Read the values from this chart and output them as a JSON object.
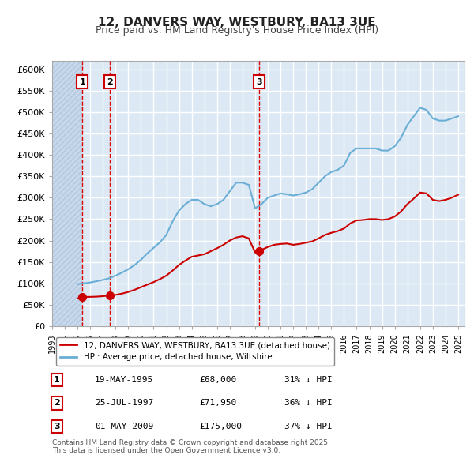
{
  "title": "12, DANVERS WAY, WESTBURY, BA13 3UE",
  "subtitle": "Price paid vs. HM Land Registry's House Price Index (HPI)",
  "ylabel": "",
  "ylim": [
    0,
    620000
  ],
  "yticks": [
    0,
    50000,
    100000,
    150000,
    200000,
    250000,
    300000,
    350000,
    400000,
    450000,
    500000,
    550000,
    600000
  ],
  "ytick_labels": [
    "£0",
    "£50K",
    "£100K",
    "£150K",
    "£200K",
    "£250K",
    "£300K",
    "£350K",
    "£400K",
    "£450K",
    "£500K",
    "£550K",
    "£600K"
  ],
  "xlim_start": 1993.0,
  "xlim_end": 2025.5,
  "background_color": "#dce9f5",
  "plot_bg_color": "#dce9f5",
  "hatch_color": "#c0d4e8",
  "grid_color": "#ffffff",
  "red_line_color": "#cc0000",
  "blue_line_color": "#6aaed6",
  "sale_points": [
    {
      "year": 1995.38,
      "price": 68000,
      "label": "1"
    },
    {
      "year": 1997.56,
      "price": 71950,
      "label": "2"
    },
    {
      "year": 2009.33,
      "price": 175000,
      "label": "3"
    }
  ],
  "vline_color": "#dd0000",
  "legend_entries": [
    "12, DANVERS WAY, WESTBURY, BA13 3UE (detached house)",
    "HPI: Average price, detached house, Wiltshire"
  ],
  "table_rows": [
    {
      "num": "1",
      "date": "19-MAY-1995",
      "price": "£68,000",
      "hpi": "31% ↓ HPI"
    },
    {
      "num": "2",
      "date": "25-JUL-1997",
      "price": "£71,950",
      "hpi": "36% ↓ HPI"
    },
    {
      "num": "3",
      "date": "01-MAY-2009",
      "price": "£175,000",
      "hpi": "37% ↓ HPI"
    }
  ],
  "footnote": "Contains HM Land Registry data © Crown copyright and database right 2025.\nThis data is licensed under the Open Government Licence v3.0.",
  "hpi_data_x": [
    1995.0,
    1995.5,
    1996.0,
    1996.5,
    1997.0,
    1997.5,
    1998.0,
    1998.5,
    1999.0,
    1999.5,
    2000.0,
    2000.5,
    2001.0,
    2001.5,
    2002.0,
    2002.5,
    2003.0,
    2003.5,
    2004.0,
    2004.5,
    2005.0,
    2005.5,
    2006.0,
    2006.5,
    2007.0,
    2007.5,
    2008.0,
    2008.5,
    2009.0,
    2009.5,
    2010.0,
    2010.5,
    2011.0,
    2011.5,
    2012.0,
    2012.5,
    2013.0,
    2013.5,
    2014.0,
    2014.5,
    2015.0,
    2015.5,
    2016.0,
    2016.5,
    2017.0,
    2017.5,
    2018.0,
    2018.5,
    2019.0,
    2019.5,
    2020.0,
    2020.5,
    2021.0,
    2021.5,
    2022.0,
    2022.5,
    2023.0,
    2023.5,
    2024.0,
    2024.5,
    2025.0
  ],
  "hpi_data_y": [
    98000,
    100000,
    102000,
    105000,
    108000,
    112000,
    118000,
    125000,
    133000,
    143000,
    155000,
    170000,
    183000,
    196000,
    213000,
    245000,
    270000,
    285000,
    295000,
    295000,
    285000,
    280000,
    285000,
    295000,
    315000,
    335000,
    335000,
    330000,
    275000,
    285000,
    300000,
    305000,
    310000,
    308000,
    305000,
    308000,
    312000,
    320000,
    335000,
    350000,
    360000,
    365000,
    375000,
    405000,
    415000,
    415000,
    415000,
    415000,
    410000,
    410000,
    420000,
    440000,
    470000,
    490000,
    510000,
    505000,
    485000,
    480000,
    480000,
    485000,
    490000
  ],
  "red_data_x": [
    1995.0,
    1995.38,
    1995.5,
    1996.0,
    1996.5,
    1997.0,
    1997.56,
    1998.0,
    1998.5,
    1999.0,
    1999.5,
    2000.0,
    2000.5,
    2001.0,
    2001.5,
    2002.0,
    2002.5,
    2003.0,
    2003.5,
    2004.0,
    2004.5,
    2005.0,
    2005.5,
    2006.0,
    2006.5,
    2007.0,
    2007.5,
    2008.0,
    2008.5,
    2009.0,
    2009.33,
    2009.5,
    2010.0,
    2010.5,
    2011.0,
    2011.5,
    2012.0,
    2012.5,
    2013.0,
    2013.5,
    2014.0,
    2014.5,
    2015.0,
    2015.5,
    2016.0,
    2016.5,
    2017.0,
    2017.5,
    2018.0,
    2018.5,
    2019.0,
    2019.5,
    2020.0,
    2020.5,
    2021.0,
    2021.5,
    2022.0,
    2022.5,
    2023.0,
    2023.5,
    2024.0,
    2024.5,
    2025.0
  ],
  "red_data_y": [
    65000,
    68000,
    68000,
    68500,
    69000,
    70000,
    71950,
    73000,
    76000,
    80000,
    85000,
    91000,
    97000,
    103000,
    110000,
    118000,
    130000,
    143000,
    153000,
    162000,
    165000,
    168000,
    175000,
    182000,
    190000,
    200000,
    207000,
    210000,
    205000,
    172000,
    175000,
    178000,
    185000,
    190000,
    192000,
    193000,
    190000,
    192000,
    195000,
    198000,
    205000,
    213000,
    218000,
    222000,
    228000,
    240000,
    247000,
    248000,
    250000,
    250000,
    248000,
    250000,
    256000,
    268000,
    285000,
    298000,
    312000,
    310000,
    295000,
    292000,
    295000,
    300000,
    307000
  ]
}
